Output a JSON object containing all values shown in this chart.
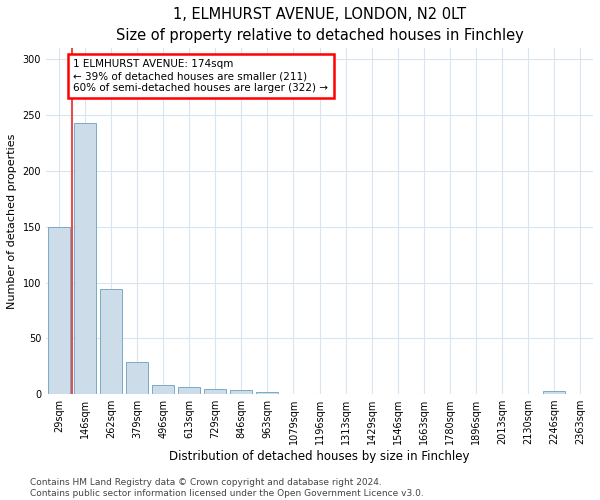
{
  "title1": "1, ELMHURST AVENUE, LONDON, N2 0LT",
  "title2": "Size of property relative to detached houses in Finchley",
  "xlabel": "Distribution of detached houses by size in Finchley",
  "ylabel": "Number of detached properties",
  "categories": [
    "29sqm",
    "146sqm",
    "262sqm",
    "379sqm",
    "496sqm",
    "613sqm",
    "729sqm",
    "846sqm",
    "963sqm",
    "1079sqm",
    "1196sqm",
    "1313sqm",
    "1429sqm",
    "1546sqm",
    "1663sqm",
    "1780sqm",
    "1896sqm",
    "2013sqm",
    "2130sqm",
    "2246sqm",
    "2363sqm"
  ],
  "values": [
    150,
    243,
    94,
    29,
    8,
    6,
    5,
    4,
    2,
    0,
    0,
    0,
    0,
    0,
    0,
    0,
    0,
    0,
    0,
    3,
    0
  ],
  "bar_color": "#ccdce8",
  "bar_edge_color": "#7aaac8",
  "annotation_text": "1 ELMHURST AVENUE: 174sqm\n← 39% of detached houses are smaller (211)\n60% of semi-detached houses are larger (322) →",
  "annotation_box_color": "white",
  "annotation_box_edge_color": "red",
  "vline_color": "#e05050",
  "ylim": [
    0,
    310
  ],
  "yticks": [
    0,
    50,
    100,
    150,
    200,
    250,
    300
  ],
  "footer1": "Contains HM Land Registry data © Crown copyright and database right 2024.",
  "footer2": "Contains public sector information licensed under the Open Government Licence v3.0.",
  "bg_color": "#ffffff",
  "plot_bg_color": "#ffffff",
  "grid_color": "#d8e4f0",
  "title1_fontsize": 10.5,
  "title2_fontsize": 9.5,
  "xlabel_fontsize": 8.5,
  "ylabel_fontsize": 8.0,
  "tick_fontsize": 7.0,
  "footer_fontsize": 6.5,
  "ann_fontsize": 7.5
}
